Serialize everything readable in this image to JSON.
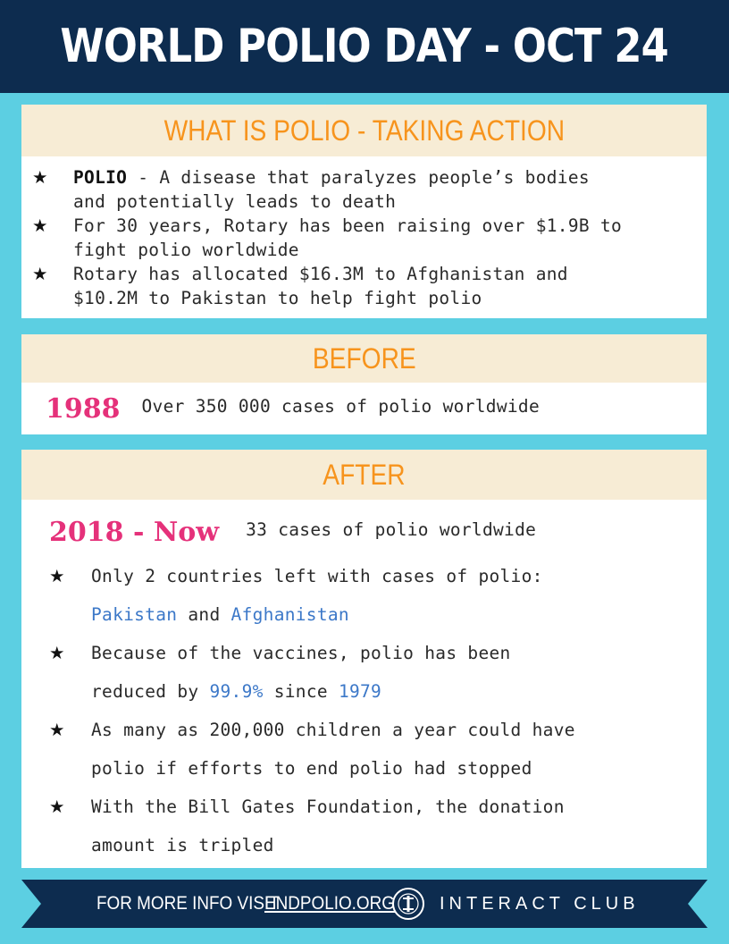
{
  "header": {
    "title": "WORLD POLIO DAY - OCT 24"
  },
  "section1": {
    "heading": "WHAT IS POLIO - TAKING ACTION",
    "bullets": [
      {
        "bold": "POLIO",
        "line1_rest": " - A disease that paralyzes people’s bodies",
        "line2": "and potentially leads to death"
      },
      {
        "line1": "For 30 years, Rotary has been raising over $1.9B to",
        "line2": "fight polio worldwide"
      },
      {
        "line1": "Rotary has allocated $16.3M to Afghanistan and",
        "line2": "$10.2M to Pakistan to help fight polio"
      }
    ]
  },
  "section2": {
    "heading": "BEFORE",
    "year": "1988",
    "text": "Over 350 000 cases of polio worldwide"
  },
  "section3": {
    "heading": "AFTER",
    "year": "2018 - Now",
    "text": "33 cases of polio worldwide",
    "b1": {
      "line1": "Only 2 countries left with cases of polio:",
      "c1": "Pakistan",
      "and": " and ",
      "c2": "Afghanistan"
    },
    "b2": {
      "line1": "Because of the vaccines, polio has been",
      "pre": "reduced by ",
      "pct": "99.9%",
      "mid": " since ",
      "yr": "1979"
    },
    "b3": {
      "line1": "As many as 200,000 children a year could have",
      "line2": "polio if efforts to end polio had stopped"
    },
    "b4": {
      "line1": "With the Bill Gates Foundation, the donation",
      "line2": "amount is tripled"
    }
  },
  "footer": {
    "prefix": "FOR MORE INFO VISIT",
    "link": "ENDPOLIO.ORG",
    "club": "INTERACT CLUB",
    "seal_text": "INTERACT"
  },
  "colors": {
    "navy": "#0d2c4f",
    "cyan": "#5ccfe2",
    "orange": "#f7941d",
    "pink": "#e5317a",
    "blue": "#3c78c8",
    "cream": "#f7ecd5"
  }
}
